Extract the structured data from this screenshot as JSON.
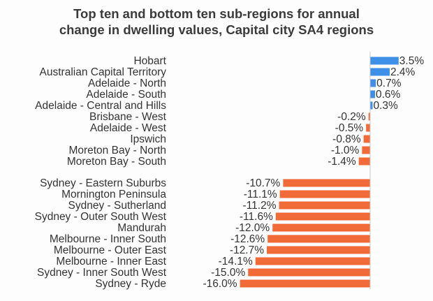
{
  "chart_data": {
    "type": "bar",
    "orientation": "horizontal",
    "title_line1": "Top ten and bottom ten sub-regions for annual",
    "title_line2": "change in dwelling values, Capital city SA4 regions",
    "colors": {
      "positive": "#3d8fe8",
      "negative": "#f26a38",
      "axis": "#c8c8c8"
    },
    "groups": [
      {
        "name": "top",
        "categories": [
          "Hobart",
          "Australian Capital Territory",
          "Adelaide - North",
          "Adelaide - South",
          "Adelaide - Central and Hills",
          "Brisbane - West",
          "Adelaide - West",
          "Ipswich",
          "Moreton Bay - North",
          "Moreton Bay - South"
        ],
        "values": [
          3.5,
          2.4,
          0.7,
          0.6,
          0.3,
          -0.2,
          -0.5,
          -0.8,
          -1.0,
          -1.4
        ],
        "labels": [
          "3.5%",
          "2.4%",
          "0.7%",
          "0.6%",
          "0.3%",
          "-0.2%",
          "-0.5%",
          "-0.8%",
          "-1.0%",
          "-1.4%"
        ]
      },
      {
        "name": "bottom",
        "categories": [
          "Sydney - Eastern Suburbs",
          "Mornington Peninsula",
          "Sydney - Sutherland",
          "Sydney - Outer South West",
          "Mandurah",
          "Melbourne - Inner South",
          "Melbourne - Outer East",
          "Melbourne - Inner East",
          "Sydney - Inner South West",
          "Sydney - Ryde"
        ],
        "values": [
          -10.7,
          -11.1,
          -11.2,
          -11.6,
          -12.0,
          -12.6,
          -12.7,
          -14.1,
          -15.0,
          -16.0
        ],
        "labels": [
          "-10.7%",
          "-11.1%",
          "-11.2%",
          "-11.6%",
          "-12.0%",
          "-12.6%",
          "-12.7%",
          "-14.1%",
          "-15.0%",
          "-16.0%"
        ]
      }
    ],
    "xlim": [
      -16.0,
      3.5
    ],
    "grid": false,
    "legend": "none"
  }
}
